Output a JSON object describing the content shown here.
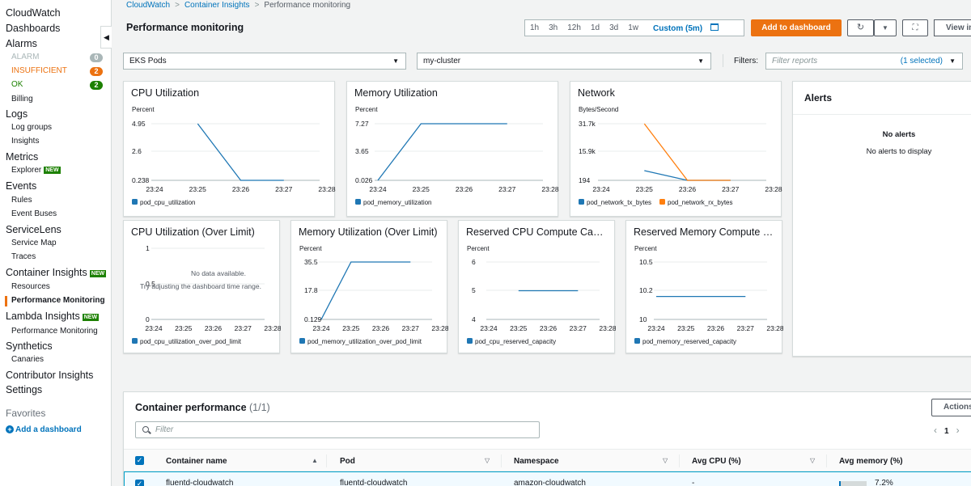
{
  "sidebar": {
    "items": [
      {
        "label": "CloudWatch",
        "kind": "top"
      },
      {
        "label": "Dashboards",
        "kind": "top"
      },
      {
        "label": "Alarms",
        "kind": "top"
      },
      {
        "label": "ALARM",
        "kind": "alarm",
        "count": "0",
        "color": "#aab7b8"
      },
      {
        "label": "INSUFFICIENT",
        "kind": "alarm",
        "count": "2",
        "color": "#ec7211"
      },
      {
        "label": "OK",
        "kind": "alarm",
        "count": "2",
        "color": "#1d8102"
      },
      {
        "label": "Billing",
        "kind": "sub"
      },
      {
        "label": "Logs",
        "kind": "top"
      },
      {
        "label": "Log groups",
        "kind": "sub"
      },
      {
        "label": "Insights",
        "kind": "sub"
      },
      {
        "label": "Metrics",
        "kind": "top"
      },
      {
        "label": "Explorer",
        "kind": "sub",
        "badge": "NEW"
      },
      {
        "label": "Events",
        "kind": "top"
      },
      {
        "label": "Rules",
        "kind": "sub"
      },
      {
        "label": "Event Buses",
        "kind": "sub"
      },
      {
        "label": "ServiceLens",
        "kind": "top"
      },
      {
        "label": "Service Map",
        "kind": "sub"
      },
      {
        "label": "Traces",
        "kind": "sub"
      },
      {
        "label": "Container Insights",
        "kind": "top",
        "badge": "NEW"
      },
      {
        "label": "Resources",
        "kind": "sub"
      },
      {
        "label": "Performance Monitoring",
        "kind": "sub",
        "active": true
      },
      {
        "label": "Lambda Insights",
        "kind": "top",
        "badge": "NEW"
      },
      {
        "label": "Performance Monitoring",
        "kind": "sub"
      },
      {
        "label": "Synthetics",
        "kind": "top"
      },
      {
        "label": "Canaries",
        "kind": "sub"
      },
      {
        "label": "Contributor Insights",
        "kind": "top"
      },
      {
        "label": "Settings",
        "kind": "top"
      }
    ],
    "favorites_label": "Favorites",
    "add_dashboard_label": "Add a dashboard"
  },
  "breadcrumb": {
    "items": [
      "CloudWatch",
      "Container Insights",
      "Performance monitoring"
    ]
  },
  "header": {
    "title": "Performance monitoring",
    "time_ranges": [
      "1h",
      "3h",
      "12h",
      "1d",
      "3d",
      "1w"
    ],
    "custom_range": "Custom (5m)",
    "add_to_dashboard": "Add to dashboard",
    "view_label": "View in"
  },
  "filters": {
    "resource_type": "EKS Pods",
    "cluster": "my-cluster",
    "filters_label": "Filters:",
    "filter_placeholder": "Filter reports",
    "selected_text": "(1 selected)"
  },
  "alerts": {
    "title": "Alerts",
    "heading": "No alerts",
    "message": "No alerts to display"
  },
  "colors": {
    "series_blue": "#1f77b4",
    "series_orange": "#ff7f0e",
    "accent": "#ec7211",
    "link": "#0073bb"
  },
  "chart_data": [
    {
      "type": "line",
      "title": "CPU Utilization",
      "unit": "Percent",
      "yticks": [
        "4.95",
        "2.6",
        "0.238"
      ],
      "ylim": [
        0.238,
        4.95
      ],
      "x": [
        "23:24",
        "23:25",
        "23:26",
        "23:27",
        "23:28"
      ],
      "series": [
        {
          "name": "pod_cpu_utilization",
          "color": "#1f77b4",
          "values": [
            null,
            4.95,
            0.238,
            0.238,
            null
          ]
        }
      ]
    },
    {
      "type": "line",
      "title": "Memory Utilization",
      "unit": "Percent",
      "yticks": [
        "7.27",
        "3.65",
        "0.026"
      ],
      "ylim": [
        0.026,
        7.27
      ],
      "x": [
        "23:24",
        "23:25",
        "23:26",
        "23:27",
        "23:28"
      ],
      "series": [
        {
          "name": "pod_memory_utilization",
          "color": "#1f77b4",
          "values": [
            0.026,
            7.27,
            7.27,
            7.27,
            null
          ]
        }
      ]
    },
    {
      "type": "line",
      "title": "Network",
      "unit": "Bytes/Second",
      "yticks": [
        "31.7k",
        "15.9k",
        "194"
      ],
      "ylim": [
        194,
        31700
      ],
      "x": [
        "23:24",
        "23:25",
        "23:26",
        "23:27",
        "23:28"
      ],
      "series": [
        {
          "name": "pod_network_tx_bytes",
          "color": "#1f77b4",
          "values": [
            null,
            5600,
            194,
            194,
            null
          ]
        },
        {
          "name": "pod_network_rx_bytes",
          "color": "#ff7f0e",
          "values": [
            null,
            31700,
            194,
            194,
            null
          ]
        }
      ]
    },
    {
      "type": "line",
      "title": "CPU Utilization (Over Limit)",
      "unit": "",
      "yticks": [
        "1",
        "0.5",
        "0"
      ],
      "ylim": [
        0,
        1
      ],
      "x": [
        "23:24",
        "23:25",
        "23:26",
        "23:27",
        "23:28"
      ],
      "no_data": "No data available.",
      "no_data_hint": "Try adjusting the dashboard time range.",
      "series": [
        {
          "name": "pod_cpu_utilization_over_pod_limit",
          "color": "#1f77b4",
          "values": [
            null,
            null,
            null,
            null,
            null
          ]
        }
      ]
    },
    {
      "type": "line",
      "title": "Memory Utilization (Over Limit)",
      "unit": "Percent",
      "yticks": [
        "35.5",
        "17.8",
        "0.129"
      ],
      "ylim": [
        0.129,
        35.5
      ],
      "x": [
        "23:24",
        "23:25",
        "23:26",
        "23:27",
        "23:28"
      ],
      "series": [
        {
          "name": "pod_memory_utilization_over_pod_limit",
          "color": "#1f77b4",
          "values": [
            0.129,
            35.5,
            35.5,
            35.5,
            null
          ]
        }
      ]
    },
    {
      "type": "line",
      "title": "Reserved CPU Compute Capacity",
      "unit": "Percent",
      "yticks": [
        "6",
        "5",
        "4"
      ],
      "ylim": [
        4,
        6
      ],
      "x": [
        "23:24",
        "23:25",
        "23:26",
        "23:27",
        "23:28"
      ],
      "series": [
        {
          "name": "pod_cpu_reserved_capacity",
          "color": "#1f77b4",
          "values": [
            null,
            5,
            5,
            5,
            null
          ]
        }
      ]
    },
    {
      "type": "line",
      "title": "Reserved Memory Compute Capacity",
      "unit": "Percent",
      "yticks": [
        "10.5",
        "10.2",
        "10"
      ],
      "ylim": [
        10,
        10.5
      ],
      "x": [
        "23:24",
        "23:25",
        "23:26",
        "23:27",
        "23:28"
      ],
      "series": [
        {
          "name": "pod_memory_reserved_capacity",
          "color": "#1f77b4",
          "values": [
            10.2,
            10.2,
            10.2,
            10.2,
            null
          ]
        }
      ]
    }
  ],
  "table": {
    "title": "Container performance",
    "count": "(1/1)",
    "actions_label": "Actions",
    "filter_placeholder": "Filter",
    "page": "1",
    "columns": [
      "Container name",
      "Pod",
      "Namespace",
      "Avg CPU (%)",
      "Avg memory (%)"
    ],
    "rows": [
      {
        "container": "fluentd-cloudwatch",
        "pod": "fluentd-cloudwatch",
        "namespace": "amazon-cloudwatch",
        "cpu": "-",
        "memory": "7.2%",
        "memory_fraction": 0.072
      }
    ]
  }
}
